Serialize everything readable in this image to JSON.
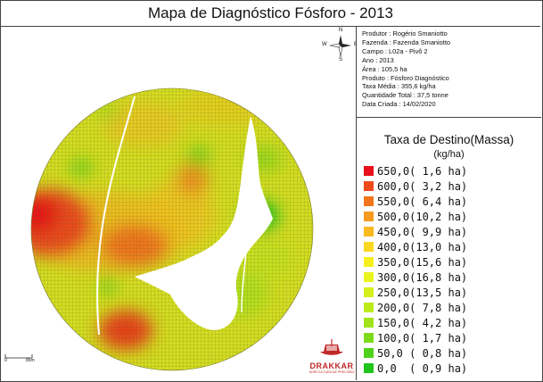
{
  "title": "Mapa de Diagnóstico Fósforo - 2013",
  "info": {
    "produtor": "Produtor : Rogério Smaniotto",
    "fazenda": "Fazenda : Fazenda Smaniotto",
    "campo": "Campo : L02a - Pivô 2",
    "ano": "Ano : 2013",
    "area": "Área : 105,5 ha",
    "produto": "Produto : Fósforo Diagnóstico",
    "taxa_media": "Taxa Média : 355,6 kg/ha",
    "quantidade": "Quantidade Total : 37,5 tonne",
    "data": "Data Criada : 14/02/2020"
  },
  "legend": {
    "title": "Taxa de Destino(Massa)",
    "unit": "(kg/ha)",
    "items": [
      {
        "label": "650,0( 1,6 ha)",
        "color": "#e8101a"
      },
      {
        "label": "600,0( 3,2 ha)",
        "color": "#ef4a1c"
      },
      {
        "label": "550,0( 6,4 ha)",
        "color": "#f2751d"
      },
      {
        "label": "500,0(10,2 ha)",
        "color": "#f69a1e"
      },
      {
        "label": "450,0( 9,9 ha)",
        "color": "#f8ba1f"
      },
      {
        "label": "400,0(13,0 ha)",
        "color": "#f9d81f"
      },
      {
        "label": "350,0(15,6 ha)",
        "color": "#f6ef1e"
      },
      {
        "label": "300,0(16,8 ha)",
        "color": "#e9f41e"
      },
      {
        "label": "250,0(13,5 ha)",
        "color": "#d5ef1d"
      },
      {
        "label": "200,0( 7,8 ha)",
        "color": "#bdea1c"
      },
      {
        "label": "150,0( 4,2 ha)",
        "color": "#a0e31b"
      },
      {
        "label": "100,0( 1,7 ha)",
        "color": "#7dda1a"
      },
      {
        "label": "50,0 ( 0,8 ha)",
        "color": "#4fd11a"
      },
      {
        "label": "0,0  ( 0,9 ha)",
        "color": "#20c51c"
      }
    ]
  },
  "compass": {
    "n": "N",
    "s": "S",
    "e": "E",
    "w": "W"
  },
  "scale": {
    "start": "0",
    "end": "85m"
  },
  "logo": {
    "name": "DRAKKAR",
    "tagline": "AGRICULTURA DE PRECISÃO"
  }
}
